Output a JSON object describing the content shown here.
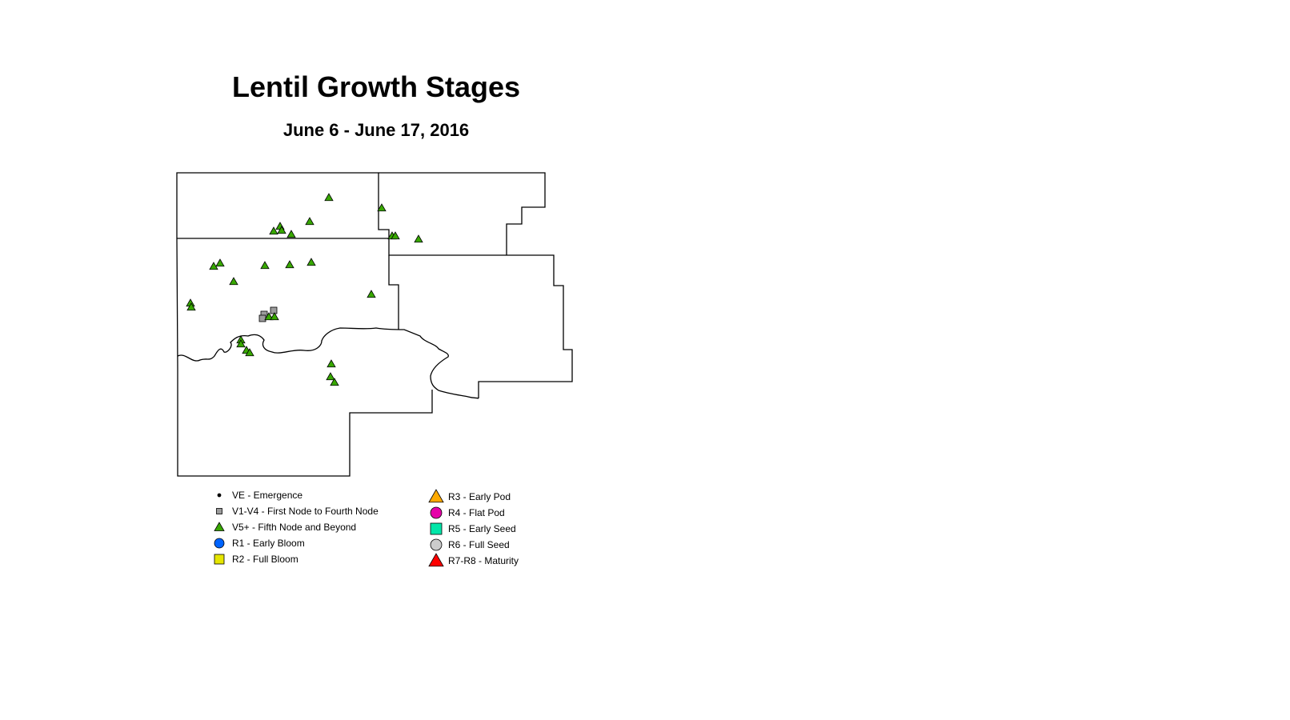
{
  "title": "Lentil Growth Stages",
  "subtitle": "June 6 - June 17, 2016",
  "legend": [
    {
      "code": "VE",
      "label": "VE - Emergence",
      "symbol": "dot",
      "color": "#000000"
    },
    {
      "code": "V1-V4",
      "label": "V1-V4 - First Node to Fourth Node",
      "symbol": "square",
      "color": "#9c9c9c"
    },
    {
      "code": "V5+",
      "label": "V5+ - Fifth Node and Beyond",
      "symbol": "triangle",
      "color": "#38a800"
    },
    {
      "code": "R1",
      "label": "R1 - Early Bloom",
      "symbol": "circle",
      "color": "#0064ff"
    },
    {
      "code": "R2",
      "label": "R2 - Full Bloom",
      "symbol": "square",
      "color": "#e6e600"
    },
    {
      "code": "R3",
      "label": "R3 - Early Pod",
      "symbol": "triangle",
      "color": "#ffaa00"
    },
    {
      "code": "R4",
      "label": "R4 - Flat Pod",
      "symbol": "circle",
      "color": "#e600a9"
    },
    {
      "code": "R5",
      "label": "R5 - Early Seed",
      "symbol": "square",
      "color": "#00e6a9"
    },
    {
      "code": "R6",
      "label": "R6 - Full Seed",
      "symbol": "circle",
      "color": "#cccccc"
    },
    {
      "code": "R7-R8",
      "label": "R7-R8 - Maturity",
      "symbol": "triangle",
      "color": "#ff0000"
    }
  ]
}
